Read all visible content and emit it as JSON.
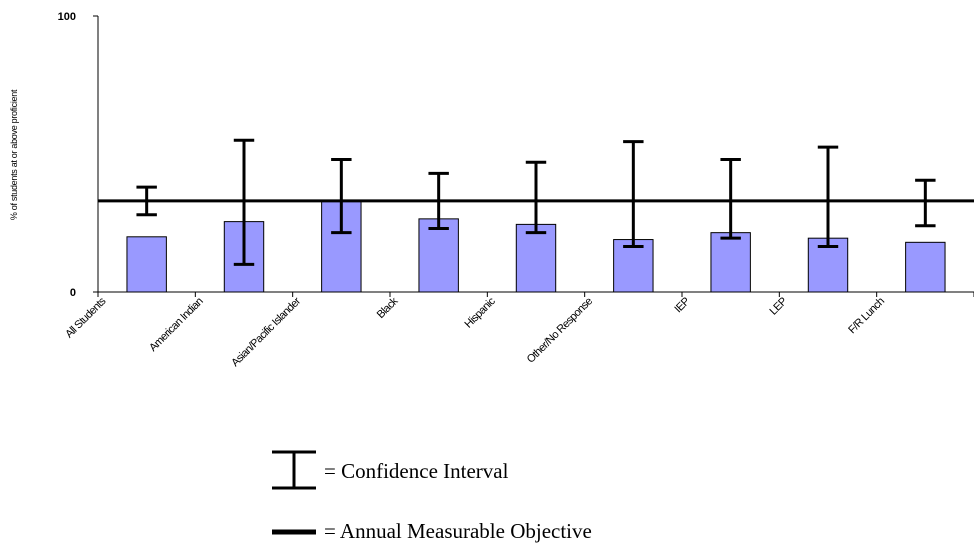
{
  "chart_data": {
    "type": "bar",
    "ylabel": "% of students at or above proficient",
    "ylim": [
      0,
      100
    ],
    "yticks": [
      "0",
      "100"
    ],
    "categories": [
      "All Students",
      "American Indian",
      "Asian/Pacific Islander",
      "Black",
      "Hispanic",
      "Other/No Response",
      "IEP",
      "LEP",
      "F/R Lunch"
    ],
    "values": [
      20,
      25.5,
      33,
      26.5,
      24.5,
      19,
      21.5,
      19.5,
      18
    ],
    "ci_low": [
      28,
      10,
      21.5,
      23,
      21.5,
      16.5,
      19.5,
      16.5,
      24
    ],
    "ci_high": [
      38,
      55,
      48,
      43,
      47,
      54.5,
      48,
      52.5,
      40.5
    ],
    "annual_measurable_objective": 33,
    "bar_color": "#9999ff",
    "legend": {
      "confidence_interval": "= Confidence Interval",
      "amo": "= Annual Measurable Objective"
    }
  }
}
